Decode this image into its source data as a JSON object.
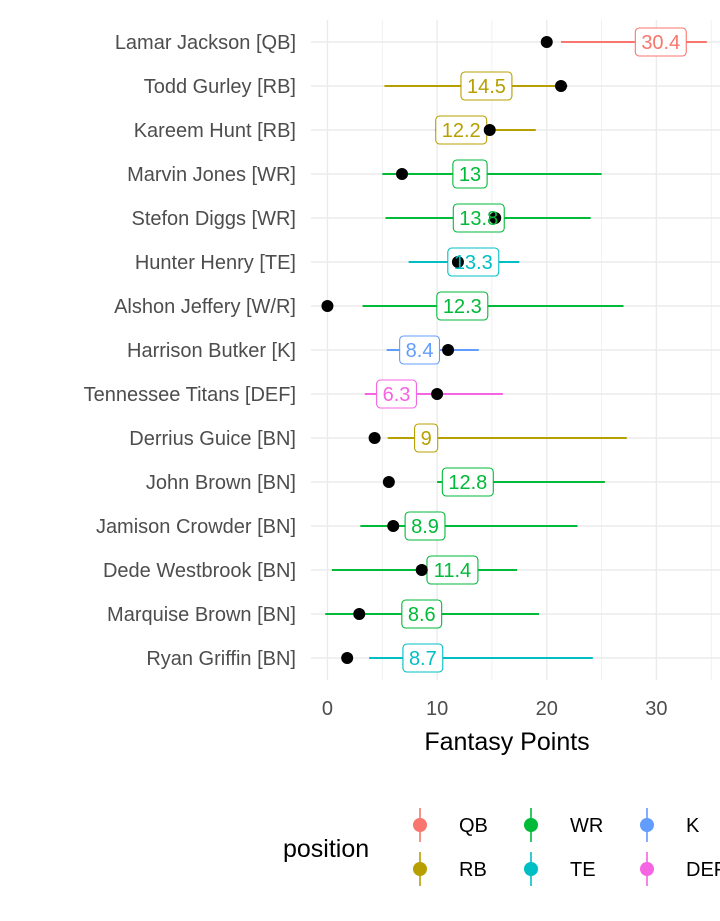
{
  "chart_data": {
    "type": "scatter",
    "xlabel": "Fantasy Points",
    "xlim": [
      -1.5,
      35.8
    ],
    "x_ticks": [
      0,
      10,
      20,
      30
    ],
    "grid": true,
    "legend_title": "position",
    "legend_placement": "bottom",
    "positions": [
      {
        "name": "QB",
        "color": "#F8766D"
      },
      {
        "name": "RB",
        "color": "#B79F00"
      },
      {
        "name": "WR",
        "color": "#00BA38"
      },
      {
        "name": "TE",
        "color": "#00BFC4"
      },
      {
        "name": "K",
        "color": "#619CFF"
      },
      {
        "name": "DEF",
        "color": "#F564E3"
      }
    ],
    "players": [
      {
        "label": "Lamar Jackson [QB]",
        "position": "QB",
        "low": 21.3,
        "high": 34.6,
        "projected": 30.4,
        "projected_text": "30.4",
        "actual": 20.0
      },
      {
        "label": "Todd Gurley [RB]",
        "position": "RB",
        "low": 5.2,
        "high": 21.9,
        "projected": 14.5,
        "projected_text": "14.5",
        "actual": 21.3
      },
      {
        "label": "Kareem Hunt [RB]",
        "position": "RB",
        "low": 9.8,
        "high": 19.0,
        "projected": 12.2,
        "projected_text": "12.2",
        "actual": 14.8
      },
      {
        "label": "Marvin Jones [WR]",
        "position": "WR",
        "low": 5.0,
        "high": 25.0,
        "projected": 13.0,
        "projected_text": "13",
        "actual": 6.8
      },
      {
        "label": "Stefon Diggs [WR]",
        "position": "WR",
        "low": 5.3,
        "high": 24.0,
        "projected": 13.8,
        "projected_text": "13.8",
        "actual": 15.3
      },
      {
        "label": "Hunter Henry [TE]",
        "position": "TE",
        "low": 7.4,
        "high": 17.5,
        "projected": 13.3,
        "projected_text": "13.3",
        "actual": 11.9
      },
      {
        "label": "Alshon Jeffery [W/R]",
        "position": "WR",
        "low": 3.2,
        "high": 27.0,
        "projected": 12.3,
        "projected_text": "12.3",
        "actual": 0.0
      },
      {
        "label": "Harrison Butker [K]",
        "position": "K",
        "low": 5.4,
        "high": 13.8,
        "projected": 8.4,
        "projected_text": "8.4",
        "actual": 11.0
      },
      {
        "label": "Tennessee Titans [DEF]",
        "position": "DEF",
        "low": 3.4,
        "high": 16.0,
        "projected": 6.3,
        "projected_text": "6.3",
        "actual": 10.0
      },
      {
        "label": "Derrius Guice [BN]",
        "position": "RB",
        "low": 5.5,
        "high": 27.3,
        "projected": 9.0,
        "projected_text": "9",
        "actual": 4.3
      },
      {
        "label": "John Brown [BN]",
        "position": "WR",
        "low": 10.0,
        "high": 25.3,
        "projected": 12.8,
        "projected_text": "12.8",
        "actual": 5.6
      },
      {
        "label": "Jamison Crowder [BN]",
        "position": "WR",
        "low": 3.0,
        "high": 22.8,
        "projected": 8.9,
        "projected_text": "8.9",
        "actual": 6.0
      },
      {
        "label": "Dede Westbrook [BN]",
        "position": "WR",
        "low": 0.4,
        "high": 17.3,
        "projected": 11.4,
        "projected_text": "11.4",
        "actual": 8.6
      },
      {
        "label": "Marquise Brown [BN]",
        "position": "WR",
        "low": -0.2,
        "high": 19.3,
        "projected": 8.6,
        "projected_text": "8.6",
        "actual": 2.9
      },
      {
        "label": "Ryan Griffin [BN]",
        "position": "TE",
        "low": 3.8,
        "high": 24.2,
        "projected": 8.7,
        "projected_text": "8.7",
        "actual": 1.8
      }
    ]
  }
}
